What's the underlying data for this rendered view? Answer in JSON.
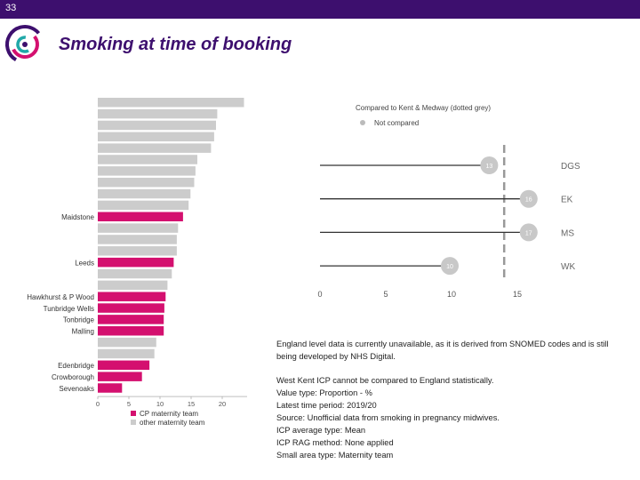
{
  "slide": {
    "number": "33",
    "title": "Smoking at time of booking",
    "colors": {
      "header": "#3d0f6e",
      "highlight": "#d4106f",
      "other": "#cccccc",
      "logo_purple": "#3d0f6e",
      "logo_pink": "#d4106f",
      "logo_teal": "#20a8a8"
    }
  },
  "chart_data": [
    {
      "type": "bar",
      "orientation": "horizontal",
      "xlim": [
        0,
        24
      ],
      "xticks": [
        "0",
        "5",
        "10",
        "15",
        "20"
      ],
      "bars": [
        {
          "label": "",
          "value": 23.5,
          "group": "other"
        },
        {
          "label": "",
          "value": 19.2,
          "group": "other"
        },
        {
          "label": "",
          "value": 19.0,
          "group": "other"
        },
        {
          "label": "",
          "value": 18.7,
          "group": "other"
        },
        {
          "label": "",
          "value": 18.2,
          "group": "other"
        },
        {
          "label": "",
          "value": 16.0,
          "group": "other"
        },
        {
          "label": "",
          "value": 15.7,
          "group": "other"
        },
        {
          "label": "",
          "value": 15.5,
          "group": "other"
        },
        {
          "label": "",
          "value": 14.9,
          "group": "other"
        },
        {
          "label": "",
          "value": 14.6,
          "group": "other"
        },
        {
          "label": "Maidstone",
          "value": 13.7,
          "group": "cp"
        },
        {
          "label": "",
          "value": 12.9,
          "group": "other"
        },
        {
          "label": "",
          "value": 12.7,
          "group": "other"
        },
        {
          "label": "",
          "value": 12.7,
          "group": "other"
        },
        {
          "label": "Leeds",
          "value": 12.2,
          "group": "cp"
        },
        {
          "label": "",
          "value": 11.9,
          "group": "other"
        },
        {
          "label": "",
          "value": 11.2,
          "group": "other"
        },
        {
          "label": "Hawkhurst & P Wood",
          "value": 10.9,
          "group": "cp"
        },
        {
          "label": "Tunbridge Wells",
          "value": 10.7,
          "group": "cp"
        },
        {
          "label": "Tonbridge",
          "value": 10.6,
          "group": "cp"
        },
        {
          "label": "Malling",
          "value": 10.6,
          "group": "cp"
        },
        {
          "label": "",
          "value": 9.4,
          "group": "other"
        },
        {
          "label": "",
          "value": 9.1,
          "group": "other"
        },
        {
          "label": "Edenbridge",
          "value": 8.3,
          "group": "cp"
        },
        {
          "label": "Crowborough",
          "value": 7.1,
          "group": "cp"
        },
        {
          "label": "Sevenoaks",
          "value": 3.9,
          "group": "cp"
        }
      ],
      "legend": [
        {
          "key": "cp",
          "label": "CP maternity team"
        },
        {
          "key": "other",
          "label": "other maternity team"
        }
      ],
      "legend_placement": "bottom"
    },
    {
      "type": "scatter",
      "style": "lollipop",
      "title": "Compared to Kent & Medway (dotted grey)",
      "legend": [
        {
          "label": "Not compared",
          "color": "#bbbbbb"
        }
      ],
      "xlim": [
        0,
        16
      ],
      "xticks": [
        "0",
        "5",
        "10",
        "15"
      ],
      "reference_line": 14.0,
      "rows": [
        {
          "label": "DGS",
          "value": 13
        },
        {
          "label": "EK",
          "value": 16
        },
        {
          "label": "MS",
          "value": 17
        },
        {
          "label": "WK",
          "value": 10
        }
      ]
    }
  ],
  "notes": {
    "para1": "England level data is currently unavailable, as it is derived from SNOMED codes and is still being developed by NHS Digital.",
    "lines": [
      "West Kent ICP cannot be compared to England statistically.",
      "Value type: Proportion - %",
      "Latest time period: 2019/20",
      "Source: Unofficial data from smoking in pregnancy midwives.",
      "ICP average type: Mean",
      "ICP RAG method: None applied",
      "Small area type: Maternity team"
    ]
  }
}
